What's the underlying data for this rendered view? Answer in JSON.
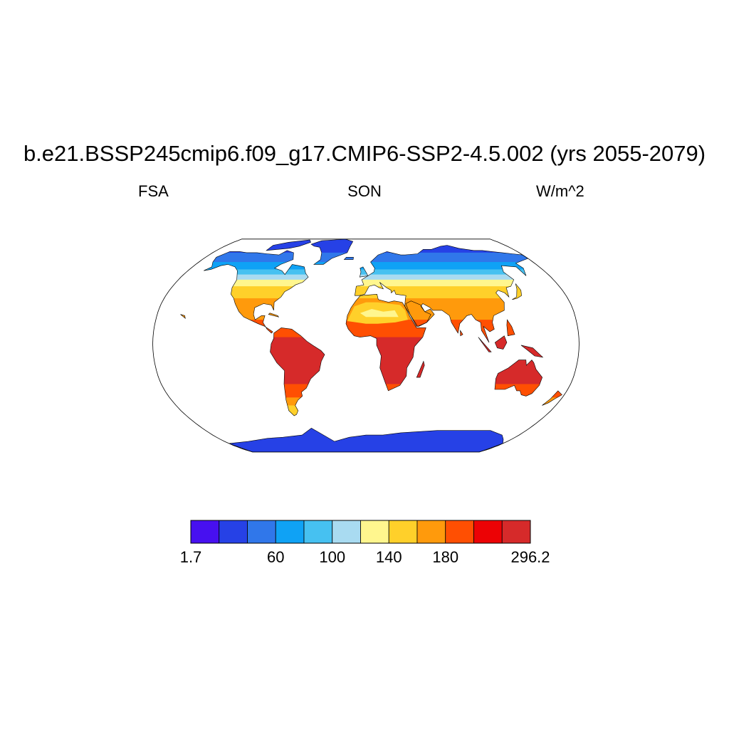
{
  "title": "b.e21.BSSP245cmip6.f09_g17.CMIP6-SSP2-4.5.002 (yrs 2055-2079)",
  "left_string": "FSA",
  "center_string": "SON",
  "right_string": "W/m^2",
  "projection": "Robinson",
  "colorbar": {
    "colors": [
      "#4710f0",
      "#2641e6",
      "#3077ea",
      "#0fa2f5",
      "#46c1f1",
      "#a9dbf1",
      "#fff68e",
      "#ffd02a",
      "#ff9a0c",
      "#ff4f02",
      "#ec0205",
      "#d62a2a"
    ],
    "labels": [
      {
        "text": "1.7",
        "boundary": 0
      },
      {
        "text": "60",
        "boundary": 3
      },
      {
        "text": "100",
        "boundary": 5
      },
      {
        "text": "140",
        "boundary": 7
      },
      {
        "text": "180",
        "boundary": 9
      },
      {
        "text": "296.2",
        "boundary": 12
      }
    ]
  },
  "legend": {
    "latitude_bands": [
      {
        "from_lat": 90,
        "to_lat": 70,
        "color": "#2641e6"
      },
      {
        "from_lat": 70,
        "to_lat": 62,
        "color": "#3077ea"
      },
      {
        "from_lat": 62,
        "to_lat": 56,
        "color": "#0fa2f5"
      },
      {
        "from_lat": 56,
        "to_lat": 52,
        "color": "#46c1f1"
      },
      {
        "from_lat": 52,
        "to_lat": 48,
        "color": "#a9dbf1"
      },
      {
        "from_lat": 48,
        "to_lat": 43,
        "color": "#fff68e"
      },
      {
        "from_lat": 43,
        "to_lat": 34,
        "color": "#ffd02a"
      },
      {
        "from_lat": 34,
        "to_lat": 18,
        "color": "#ff9a0c"
      },
      {
        "from_lat": 18,
        "to_lat": 5,
        "color": "#ff4f02"
      },
      {
        "from_lat": 5,
        "to_lat": -30,
        "color": "#d62a2a"
      },
      {
        "from_lat": -30,
        "to_lat": -40,
        "color": "#ff4f02"
      },
      {
        "from_lat": -40,
        "to_lat": -46,
        "color": "#ff9a0c"
      },
      {
        "from_lat": -46,
        "to_lat": -56,
        "color": "#ffd02a"
      },
      {
        "from_lat": -56,
        "to_lat": -90,
        "color": "#2641e6"
      }
    ]
  }
}
